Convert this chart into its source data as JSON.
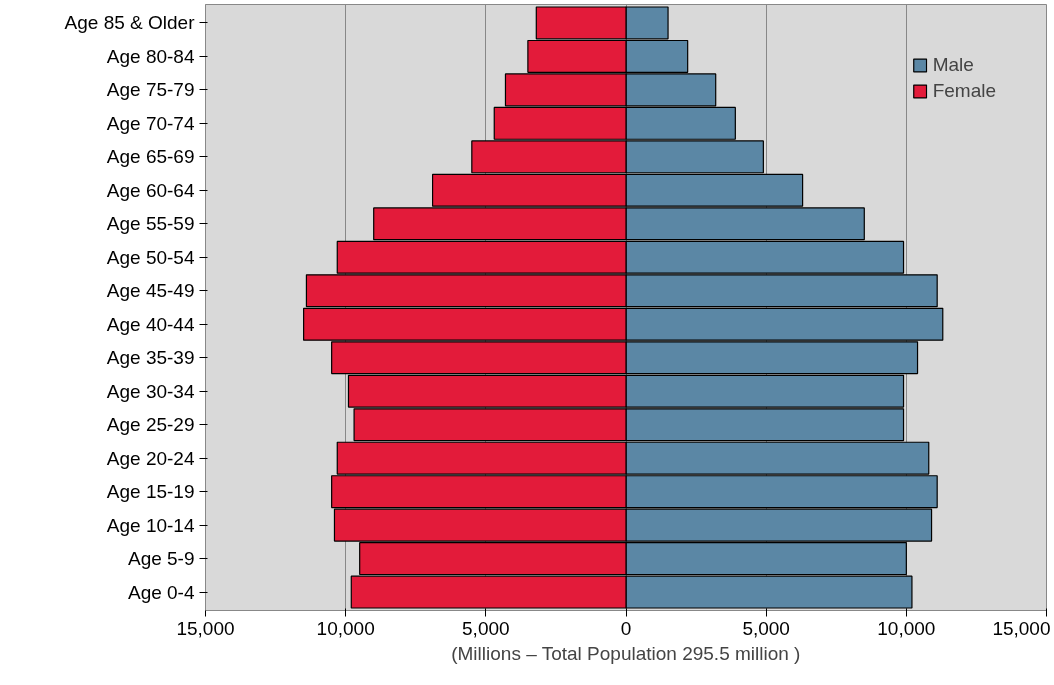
{
  "chart_data": {
    "type": "bar",
    "orientation": "horizontal",
    "categories": [
      "Age 85 & Older",
      "Age 80-84",
      "Age 75-79",
      "Age 70-74",
      "Age 65-69",
      "Age 60-64",
      "Age 55-59",
      "Age 50-54",
      "Age 45-49",
      "Age 40-44",
      "Age 35-39",
      "Age 30-34",
      "Age 25-29",
      "Age 20-24",
      "Age 15-19",
      "Age 10-14",
      "Age 5-9",
      "Age 0-4"
    ],
    "series": [
      {
        "name": "Male",
        "color": "#5b87a5",
        "values": [
          1500,
          2200,
          3200,
          3900,
          4900,
          6300,
          8500,
          9900,
          11100,
          11300,
          10400,
          9900,
          9900,
          10800,
          11100,
          10900,
          10000,
          10200
        ]
      },
      {
        "name": "Female",
        "color": "#e31b3a",
        "values": [
          -3200,
          -3500,
          -4300,
          -4700,
          -5500,
          -6900,
          -9000,
          -10300,
          -11400,
          -11500,
          -10500,
          -9900,
          -9700,
          -10300,
          -10500,
          -10400,
          -9500,
          -9800
        ]
      }
    ],
    "xlabel": "(Millions – Total Population 295.5 million )",
    "xlim": [
      -15000,
      15000
    ],
    "xticks": [
      {
        "value": -15000,
        "label": "15,000"
      },
      {
        "value": -10000,
        "label": "10,000"
      },
      {
        "value": -5000,
        "label": "5,000"
      },
      0,
      {
        "value": 5000,
        "label": "5,000"
      },
      {
        "value": 10000,
        "label": "10,000"
      },
      {
        "value": 15000,
        "label": "15,000"
      }
    ],
    "stacked": true,
    "grid": "x",
    "legend": "top right"
  }
}
